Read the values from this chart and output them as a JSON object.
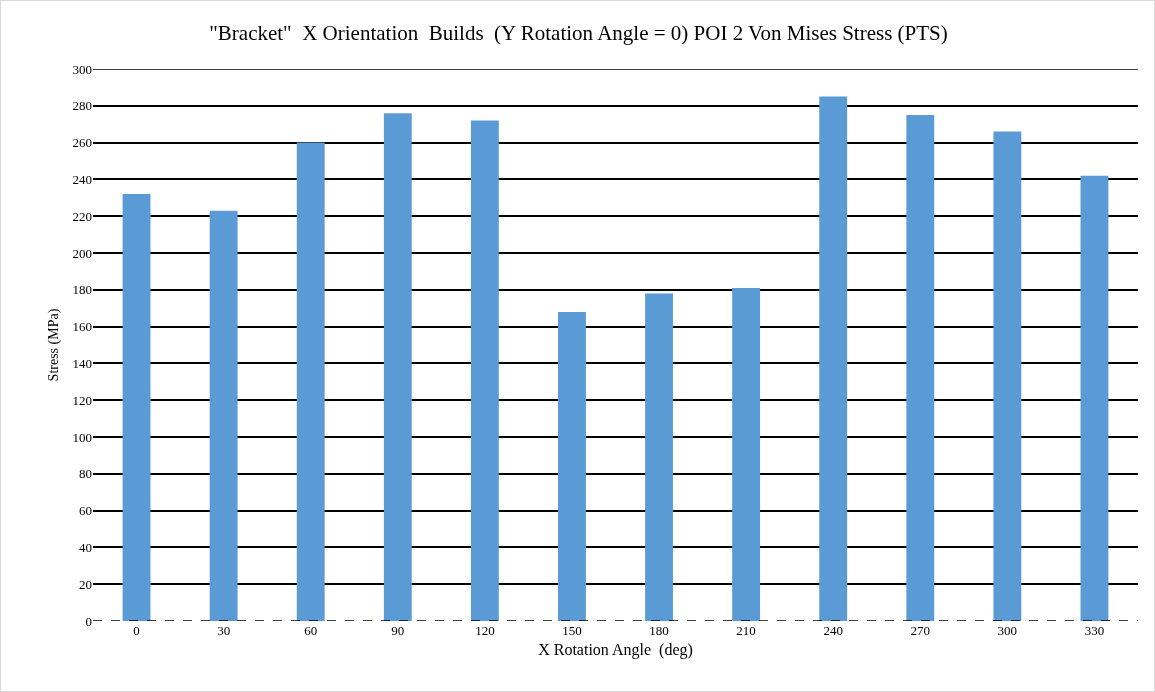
{
  "chart_data": {
    "type": "bar",
    "title": "\"Bracket\"  X Orientation  Builds  (Y Rotation Angle = 0) POI 2 Von Mises Stress (PTS)",
    "xlabel": "X Rotation Angle  (deg)",
    "ylabel": "Stress (MPa)",
    "categories": [
      "0",
      "30",
      "60",
      "90",
      "120",
      "150",
      "180",
      "210",
      "240",
      "270",
      "300",
      "330"
    ],
    "values": [
      232,
      223,
      260,
      276,
      272,
      168,
      178,
      181,
      285,
      275,
      266,
      242
    ],
    "color": "#5b9bd5",
    "ylim": [
      0,
      300
    ],
    "yticks": [
      0,
      20,
      40,
      60,
      80,
      100,
      120,
      140,
      160,
      180,
      200,
      220,
      240,
      260,
      280,
      300
    ],
    "grid": "y"
  }
}
